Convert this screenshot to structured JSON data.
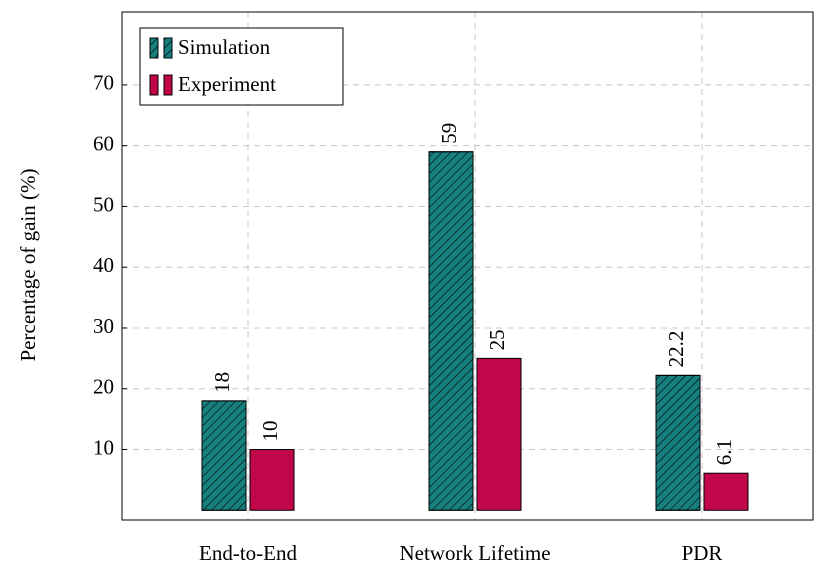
{
  "chart_data": {
    "type": "bar",
    "ylabel": "Percentage of gain (%)",
    "categories": [
      "End-to-End",
      "Network Lifetime",
      "PDR"
    ],
    "series": [
      {
        "name": "Simulation",
        "color": "#17807e",
        "hatch": true,
        "values": [
          18,
          59,
          22.2
        ]
      },
      {
        "name": "Experiment",
        "color": "#c2064a",
        "hatch": false,
        "values": [
          10,
          25,
          6.1
        ]
      }
    ],
    "ylim": [
      -1.6,
      82
    ],
    "yticks": [
      10,
      20,
      30,
      40,
      50,
      60,
      70
    ],
    "grid": true,
    "legend": "north west"
  }
}
